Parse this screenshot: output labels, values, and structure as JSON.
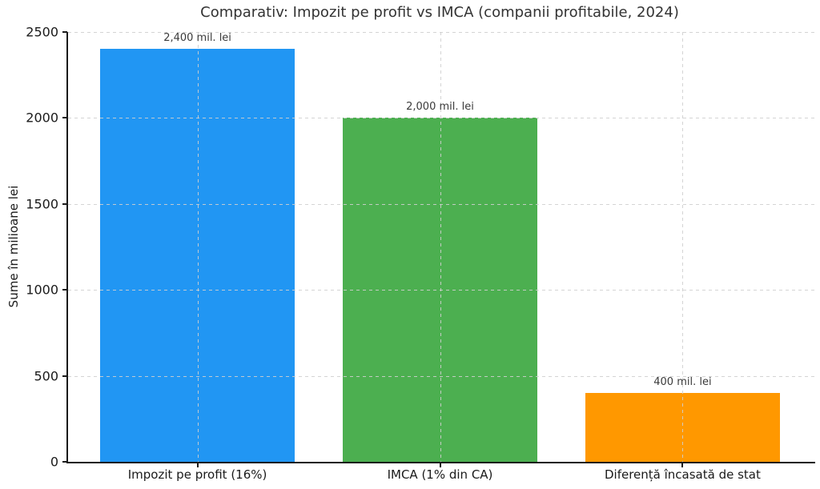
{
  "chart_data": {
    "type": "bar",
    "title": "Comparativ: Impozit pe profit vs IMCA (companii profitabile, 2024)",
    "ylabel": "Sume în milioane lei",
    "xlabel": "",
    "categories": [
      "Impozit pe profit (16%)",
      "IMCA (1% din CA)",
      "Diferență încasată de stat"
    ],
    "values": [
      2400,
      2000,
      400
    ],
    "bar_value_labels": [
      "2,400 mil. lei",
      "2,000 mil. lei",
      "400 mil. lei"
    ],
    "bar_colors": [
      "#2196F3",
      "#4CAF50",
      "#FF9800"
    ],
    "ylim": [
      0,
      2500
    ],
    "yticks": [
      0,
      500,
      1000,
      1500,
      2000,
      2500
    ],
    "ytick_labels": [
      "0",
      "500",
      "1000",
      "1500",
      "2000",
      "2500"
    ],
    "grid": "dashed light-gray gridlines, horizontal at yticks and vertical at bar centers, drawn above bars",
    "legend": "none",
    "spine_color": "#1a1a1a",
    "grid_color": "#cfcfcf",
    "title_color": "#333333",
    "text_color": "#1a1a1a"
  }
}
